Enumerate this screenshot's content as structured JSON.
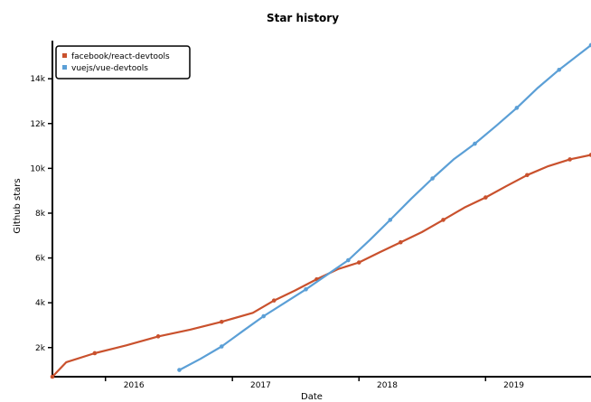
{
  "chart_data": {
    "type": "line",
    "title": "Star history",
    "xlabel": "Date",
    "ylabel": "Github stars",
    "x_ticks": [
      "2016",
      "2017",
      "2018",
      "2019"
    ],
    "y_ticks": [
      "2k",
      "4k",
      "6k",
      "8k",
      "10k",
      "12k",
      "14k"
    ],
    "xlim": [
      "2015-08-01",
      "2019-11-01"
    ],
    "ylim": [
      700,
      15700
    ],
    "legend_position": "top-left",
    "grid": false,
    "series": [
      {
        "name": "facebook/react-devtools",
        "color": "#c9512d",
        "points": [
          [
            "2015-08-01",
            700
          ],
          [
            "2015-09-10",
            1350
          ],
          [
            "2015-12-01",
            1750
          ],
          [
            "2016-03-01",
            2100
          ],
          [
            "2016-06-01",
            2500
          ],
          [
            "2016-09-01",
            2800
          ],
          [
            "2016-12-01",
            3150
          ],
          [
            "2017-03-01",
            3550
          ],
          [
            "2017-05-01",
            4100
          ],
          [
            "2017-07-01",
            4550
          ],
          [
            "2017-09-01",
            5050
          ],
          [
            "2017-11-01",
            5500
          ],
          [
            "2018-01-01",
            5800
          ],
          [
            "2018-03-01",
            6250
          ],
          [
            "2018-05-01",
            6700
          ],
          [
            "2018-07-01",
            7150
          ],
          [
            "2018-09-01",
            7700
          ],
          [
            "2018-11-01",
            8250
          ],
          [
            "2019-01-01",
            8700
          ],
          [
            "2019-03-01",
            9200
          ],
          [
            "2019-05-01",
            9700
          ],
          [
            "2019-07-01",
            10100
          ],
          [
            "2019-09-01",
            10400
          ],
          [
            "2019-11-01",
            10600
          ]
        ]
      },
      {
        "name": "vuejs/vue-devtools",
        "color": "#5b9fd6",
        "points": [
          [
            "2016-08-01",
            1000
          ],
          [
            "2016-10-01",
            1500
          ],
          [
            "2016-12-01",
            2050
          ],
          [
            "2017-02-01",
            2750
          ],
          [
            "2017-04-01",
            3400
          ],
          [
            "2017-06-01",
            4000
          ],
          [
            "2017-08-01",
            4600
          ],
          [
            "2017-10-01",
            5250
          ],
          [
            "2017-12-01",
            5900
          ],
          [
            "2018-02-01",
            6800
          ],
          [
            "2018-04-01",
            7700
          ],
          [
            "2018-06-01",
            8650
          ],
          [
            "2018-08-01",
            9550
          ],
          [
            "2018-10-01",
            10400
          ],
          [
            "2018-12-01",
            11100
          ],
          [
            "2019-02-01",
            11900
          ],
          [
            "2019-04-01",
            12700
          ],
          [
            "2019-06-01",
            13600
          ],
          [
            "2019-08-01",
            14400
          ],
          [
            "2019-11-01",
            15500
          ]
        ]
      }
    ]
  }
}
